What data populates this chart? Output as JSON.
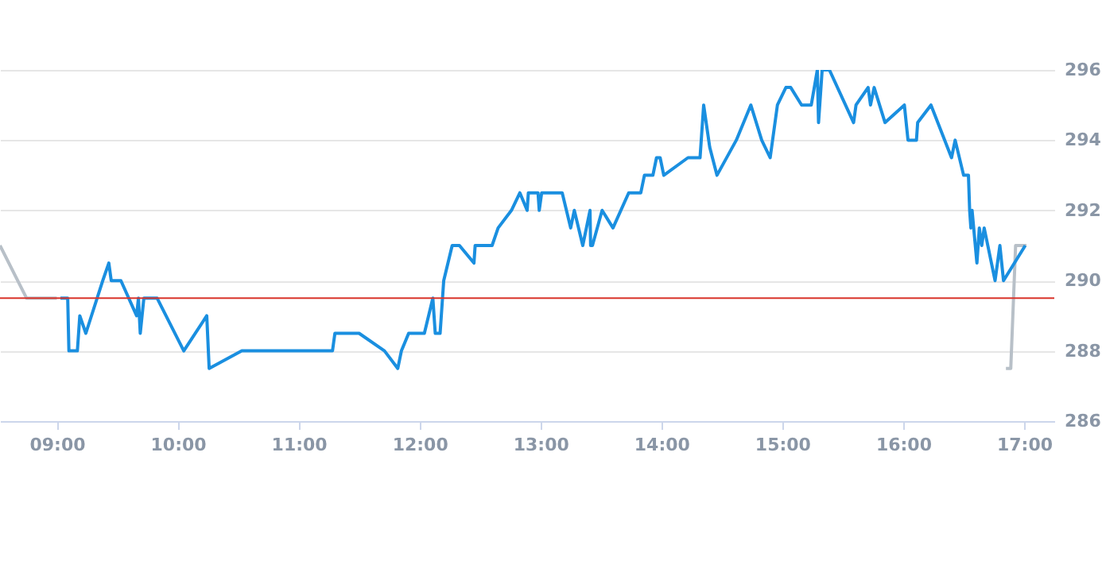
{
  "chart_data": {
    "type": "line",
    "xlim": [
      8.53,
      17.25
    ],
    "ylim": [
      286,
      296
    ],
    "xticks": [
      {
        "value": 9,
        "label": "09:00"
      },
      {
        "value": 10,
        "label": "10:00"
      },
      {
        "value": 11,
        "label": "11:00"
      },
      {
        "value": 12,
        "label": "12:00"
      },
      {
        "value": 13,
        "label": "13:00"
      },
      {
        "value": 14,
        "label": "14:00"
      },
      {
        "value": 15,
        "label": "15:00"
      },
      {
        "value": 16,
        "label": "16:00"
      },
      {
        "value": 17,
        "label": "17:00"
      }
    ],
    "yticks": [
      286,
      288,
      290,
      292,
      294,
      296
    ],
    "grid": "y",
    "marker": "none",
    "line_style": "solid",
    "series": [
      {
        "color": "#b8c0c8",
        "x": [
          8.53,
          8.75,
          9.0
        ],
        "values": [
          291,
          289.5,
          289.5
        ]
      },
      {
        "color": "#b8c0c8",
        "x": [
          16.85,
          16.89,
          16.93,
          17.02
        ],
        "values": [
          287.5,
          287.5,
          291,
          291
        ]
      },
      {
        "color": "#1a8fe0",
        "x": [
          9.03,
          9.09,
          9.1,
          9.17,
          9.19,
          9.24,
          9.38,
          9.43,
          9.45,
          9.53,
          9.66,
          9.675,
          9.69,
          9.72,
          9.83,
          10.05,
          10.24,
          10.26,
          10.53,
          11.28,
          11.3,
          11.5,
          11.71,
          11.82,
          11.85,
          11.91,
          12.04,
          12.11,
          12.13,
          12.17,
          12.2,
          12.27,
          12.33,
          12.45,
          12.46,
          12.6,
          12.65,
          12.76,
          12.83,
          12.89,
          12.9,
          12.98,
          12.99,
          13.01,
          13.18,
          13.25,
          13.28,
          13.35,
          13.41,
          13.415,
          13.43,
          13.51,
          13.6,
          13.73,
          13.83,
          13.86,
          13.93,
          13.96,
          13.99,
          14.02,
          14.22,
          14.32,
          14.35,
          14.4,
          14.46,
          14.62,
          14.74,
          14.83,
          14.9,
          14.96,
          15.03,
          15.07,
          15.16,
          15.24,
          15.29,
          15.3,
          15.33,
          15.39,
          15.59,
          15.61,
          15.71,
          15.73,
          15.76,
          15.85,
          16.01,
          16.04,
          16.11,
          16.12,
          16.23,
          16.4,
          16.43,
          16.5,
          16.54,
          16.55,
          16.56,
          16.57,
          16.61,
          16.63,
          16.65,
          16.67,
          16.76,
          16.8,
          16.83,
          17.01
        ],
        "values": [
          289.5,
          289.5,
          288,
          288,
          289,
          288.5,
          290,
          290.5,
          290,
          290,
          289,
          289.5,
          288.5,
          289.5,
          289.5,
          288,
          289,
          287.5,
          288,
          288,
          288.5,
          288.5,
          288,
          287.5,
          288,
          288.5,
          288.5,
          289.5,
          288.5,
          288.5,
          290,
          291,
          291,
          290.5,
          291,
          291,
          291.5,
          292,
          292.5,
          292,
          292.5,
          292.5,
          292,
          292.5,
          292.5,
          291.5,
          292,
          291,
          292,
          291,
          291,
          292,
          291.5,
          292.5,
          292.5,
          293,
          293,
          293.5,
          293.5,
          293,
          293.5,
          293.5,
          295,
          293.8,
          293,
          294,
          295,
          294,
          293.5,
          295,
          295.5,
          295.5,
          295,
          295,
          296,
          294.5,
          296,
          296,
          294.5,
          295,
          295.5,
          295,
          295.5,
          294.5,
          295,
          294,
          294,
          294.5,
          295,
          293.5,
          294,
          293,
          293,
          292,
          291.5,
          292,
          290.5,
          291.5,
          291,
          291.5,
          290,
          291,
          290,
          291
        ]
      }
    ],
    "ref_lines": [
      {
        "axis": "y",
        "value": 289.5,
        "color": "#d9342b",
        "line_style": "solid"
      }
    ]
  }
}
